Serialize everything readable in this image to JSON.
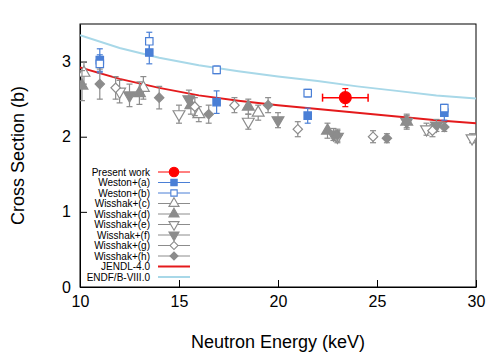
{
  "chart_data": {
    "type": "scatter",
    "x_label": "Neutron Energy (keV)",
    "y_label": "Cross Section (b)",
    "xlim": [
      10,
      30
    ],
    "ylim": [
      0,
      3.5
    ],
    "xticks": [
      10,
      15,
      20,
      25,
      30
    ],
    "yticks": [
      0,
      1,
      2,
      3
    ],
    "grid": false,
    "legend": "lower left",
    "series": [
      {
        "name": "Present work",
        "type": "scatter",
        "color": "#ff0000",
        "marker": "circle",
        "x": [
          23.4
        ],
        "values": [
          2.52
        ],
        "errors": [
          0.12
        ],
        "x_errors": [
          1.15
        ]
      },
      {
        "name": "Weston+(a)",
        "type": "scatter",
        "color": "#4a7fd6",
        "marker": "square",
        "x": [
          11.0,
          13.5,
          16.9,
          21.5,
          28.4
        ],
        "values": [
          3.02,
          3.12,
          2.46,
          2.28,
          2.32
        ],
        "errors": [
          0.15,
          0.15,
          0.15,
          0.1,
          0.1
        ]
      },
      {
        "name": "Weston+(b)",
        "type": "scatter",
        "color": "#4a7fd6",
        "marker": "open-square",
        "x": [
          11.0,
          13.5,
          16.9,
          21.5,
          28.4
        ],
        "values": [
          2.97,
          3.27,
          2.89,
          2.58,
          2.38
        ],
        "errors": [
          0.12,
          0.12,
          0.05,
          0.05,
          0.05
        ]
      },
      {
        "name": "Wisshak+(c)",
        "type": "scatter",
        "color": "#8c8c8c",
        "marker": "open-triangle-up",
        "x": [
          10.2,
          13.2,
          16.0,
          19.0
        ],
        "values": [
          2.85,
          2.65,
          2.3,
          2.32
        ],
        "errors": [
          0.15,
          0.15,
          0.1,
          0.1
        ]
      },
      {
        "name": "Wisshak+(d)",
        "type": "scatter",
        "color": "#8c8c8c",
        "marker": "triangle-up",
        "x": [
          10.1,
          13.0,
          15.6,
          18.5,
          22.5,
          26.5
        ],
        "values": [
          2.68,
          2.58,
          2.42,
          2.4,
          2.08,
          2.2
        ],
        "errors": [
          0.2,
          0.15,
          0.12,
          0.1,
          0.1,
          0.1
        ]
      },
      {
        "name": "Wisshak+(e)",
        "type": "scatter",
        "color": "#8c8c8c",
        "marker": "open-triangle-down",
        "x": [
          12.0,
          15.0,
          18.5,
          23.0,
          27.5,
          29.8
        ],
        "values": [
          2.6,
          2.3,
          2.2,
          2.0,
          2.1,
          1.98
        ],
        "errors": [
          0.15,
          0.12,
          0.1,
          0.08,
          0.08,
          0.06
        ]
      },
      {
        "name": "Wisshak+(f)",
        "type": "scatter",
        "color": "#8c8c8c",
        "marker": "triangle-down",
        "x": [
          12.5,
          15.5,
          20.0,
          22.8,
          26.5,
          28.0
        ],
        "values": [
          2.55,
          2.5,
          2.22,
          2.03,
          2.2,
          2.15
        ],
        "errors": [
          0.15,
          0.12,
          0.1,
          0.08,
          0.08,
          0.08
        ]
      },
      {
        "name": "Wisshak+(g)",
        "type": "scatter",
        "color": "#8c8c8c",
        "marker": "open-diamond",
        "x": [
          11.8,
          15.8,
          17.8,
          21.0,
          24.8,
          27.8
        ],
        "values": [
          2.65,
          2.4,
          2.42,
          2.1,
          2.0,
          2.08
        ],
        "errors": [
          0.15,
          0.12,
          0.1,
          0.1,
          0.08,
          0.08
        ]
      },
      {
        "name": "Wisshak+(h)",
        "type": "scatter",
        "color": "#8c8c8c",
        "marker": "diamond",
        "x": [
          11.0,
          14.0,
          16.5,
          19.5,
          23.0,
          25.5,
          28.4
        ],
        "values": [
          2.7,
          2.52,
          2.3,
          2.42,
          2.02,
          1.98,
          2.13
        ],
        "errors": [
          0.2,
          0.15,
          0.12,
          0.1,
          0.08,
          0.06,
          0.06
        ]
      },
      {
        "name": "JENDL-4.0",
        "type": "line",
        "color": "#e41a1c",
        "line_style": "solid",
        "x": [
          10,
          12,
          14,
          16,
          18,
          20,
          22,
          24,
          26,
          28,
          30
        ],
        "values": [
          2.92,
          2.77,
          2.65,
          2.55,
          2.48,
          2.42,
          2.37,
          2.32,
          2.27,
          2.22,
          2.18
        ]
      },
      {
        "name": "ENDF/B-VIII.0",
        "type": "line",
        "color": "#a8d8e8",
        "line_style": "solid",
        "x": [
          10,
          12,
          14,
          16,
          18,
          20,
          22,
          24,
          26,
          28,
          30
        ],
        "values": [
          3.35,
          3.18,
          3.05,
          2.95,
          2.87,
          2.8,
          2.74,
          2.67,
          2.61,
          2.55,
          2.51
        ]
      }
    ]
  }
}
